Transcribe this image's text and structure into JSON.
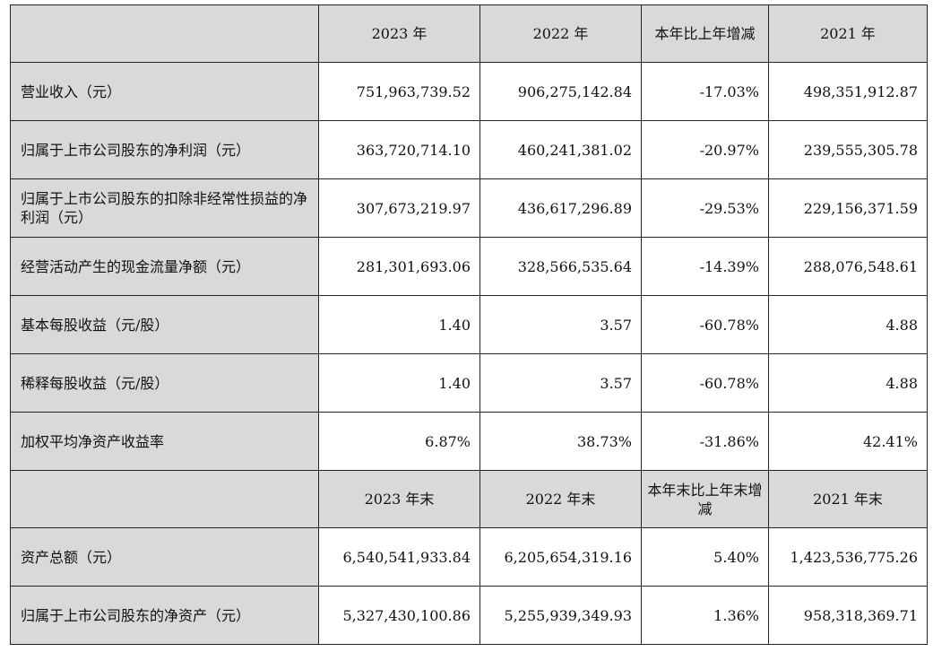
{
  "header_1": {
    "label": "",
    "columns": [
      "2023 年",
      "2022 年",
      "本年比上年增减",
      "2021 年"
    ]
  },
  "rows_1": [
    {
      "label": "营业收入（元）",
      "values": [
        "751,963,739.52",
        "906,275,142.84",
        "-17.03%",
        "498,351,912.87"
      ]
    },
    {
      "label": "归属于上市公司股东的净利润（元）",
      "values": [
        "363,720,714.10",
        "460,241,381.02",
        "-20.97%",
        "239,555,305.78"
      ]
    },
    {
      "label": "归属于上市公司股东的扣除非经常性损益的净利润（元）",
      "values": [
        "307,673,219.97",
        "436,617,296.89",
        "-29.53%",
        "229,156,371.59"
      ]
    },
    {
      "label": "经营活动产生的现金流量净额（元）",
      "values": [
        "281,301,693.06",
        "328,566,535.64",
        "-14.39%",
        "288,076,548.61"
      ]
    },
    {
      "label": "基本每股收益（元/股）",
      "values": [
        "1.40",
        "3.57",
        "-60.78%",
        "4.88"
      ]
    },
    {
      "label": "稀释每股收益（元/股）",
      "values": [
        "1.40",
        "3.57",
        "-60.78%",
        "4.88"
      ]
    },
    {
      "label": "加权平均净资产收益率",
      "values": [
        "6.87%",
        "38.73%",
        "-31.86%",
        "42.41%"
      ]
    }
  ],
  "header_2": {
    "label": "",
    "columns": [
      "2023 年末",
      "2022 年末",
      "本年末比上年末增减",
      "2021 年末"
    ]
  },
  "rows_2": [
    {
      "label": "资产总额（元）",
      "values": [
        "6,540,541,933.84",
        "6,205,654,319.16",
        "5.40%",
        "1,423,536,775.26"
      ]
    },
    {
      "label": "归属于上市公司股东的净资产（元）",
      "values": [
        "5,327,430,100.86",
        "5,255,939,349.93",
        "1.36%",
        "958,318,369.71"
      ]
    }
  ]
}
